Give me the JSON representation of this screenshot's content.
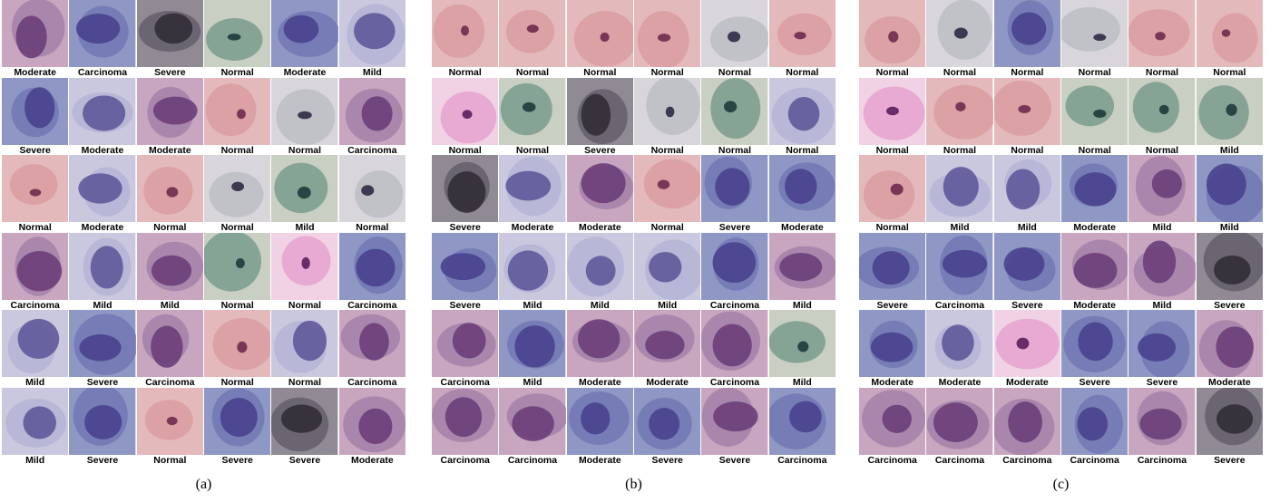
{
  "figure": {
    "panels": [
      {
        "caption": "(a)",
        "cells": [
          {
            "label": "Moderate",
            "stain": "violet"
          },
          {
            "label": "Carcinoma",
            "stain": "blue"
          },
          {
            "label": "Severe",
            "stain": "blur"
          },
          {
            "label": "Normal",
            "stain": "green"
          },
          {
            "label": "Moderate",
            "stain": "blue"
          },
          {
            "label": "Mild",
            "stain": "pale"
          },
          {
            "label": "Severe",
            "stain": "blue"
          },
          {
            "label": "Moderate",
            "stain": "pale"
          },
          {
            "label": "Moderate",
            "stain": "violet"
          },
          {
            "label": "Normal",
            "stain": "pink"
          },
          {
            "label": "Normal",
            "stain": "grey"
          },
          {
            "label": "Carcinoma",
            "stain": "violet"
          },
          {
            "label": "Normal",
            "stain": "pink"
          },
          {
            "label": "Moderate",
            "stain": "pale"
          },
          {
            "label": "Normal",
            "stain": "pink"
          },
          {
            "label": "Normal",
            "stain": "grey"
          },
          {
            "label": "Mild",
            "stain": "green"
          },
          {
            "label": "Normal",
            "stain": "grey"
          },
          {
            "label": "Carcinoma",
            "stain": "violet"
          },
          {
            "label": "Mild",
            "stain": "pale"
          },
          {
            "label": "Mild",
            "stain": "violet"
          },
          {
            "label": "Normal",
            "stain": "green"
          },
          {
            "label": "Normal",
            "stain": "magenta"
          },
          {
            "label": "Carcinoma",
            "stain": "blue"
          },
          {
            "label": "Mild",
            "stain": "pale"
          },
          {
            "label": "Severe",
            "stain": "blue"
          },
          {
            "label": "Carcinoma",
            "stain": "violet"
          },
          {
            "label": "Normal",
            "stain": "pink"
          },
          {
            "label": "Normal",
            "stain": "pale"
          },
          {
            "label": "Carcinoma",
            "stain": "violet"
          },
          {
            "label": "Mild",
            "stain": "pale"
          },
          {
            "label": "Severe",
            "stain": "blue"
          },
          {
            "label": "Normal",
            "stain": "pink"
          },
          {
            "label": "Severe",
            "stain": "blue"
          },
          {
            "label": "Severe",
            "stain": "blur"
          },
          {
            "label": "Moderate",
            "stain": "violet"
          }
        ]
      },
      {
        "caption": "(b)",
        "cells": [
          {
            "label": "Normal",
            "stain": "pink"
          },
          {
            "label": "Normal",
            "stain": "pink"
          },
          {
            "label": "Normal",
            "stain": "pink"
          },
          {
            "label": "Normal",
            "stain": "pink"
          },
          {
            "label": "Normal",
            "stain": "grey"
          },
          {
            "label": "Normal",
            "stain": "pink"
          },
          {
            "label": "Normal",
            "stain": "magenta"
          },
          {
            "label": "Normal",
            "stain": "green"
          },
          {
            "label": "Severe",
            "stain": "blur"
          },
          {
            "label": "Normal",
            "stain": "grey"
          },
          {
            "label": "Normal",
            "stain": "green"
          },
          {
            "label": "Normal",
            "stain": "pale"
          },
          {
            "label": "Severe",
            "stain": "blur"
          },
          {
            "label": "Moderate",
            "stain": "pale"
          },
          {
            "label": "Moderate",
            "stain": "violet"
          },
          {
            "label": "Normal",
            "stain": "pink"
          },
          {
            "label": "Severe",
            "stain": "blue"
          },
          {
            "label": "Moderate",
            "stain": "blue"
          },
          {
            "label": "Severe",
            "stain": "blue"
          },
          {
            "label": "Mild",
            "stain": "pale"
          },
          {
            "label": "Mild",
            "stain": "pale"
          },
          {
            "label": "Mild",
            "stain": "pale"
          },
          {
            "label": "Carcinoma",
            "stain": "blue"
          },
          {
            "label": "Mild",
            "stain": "violet"
          },
          {
            "label": "Carcinoma",
            "stain": "violet"
          },
          {
            "label": "Mild",
            "stain": "blue"
          },
          {
            "label": "Moderate",
            "stain": "violet"
          },
          {
            "label": "Moderate",
            "stain": "violet"
          },
          {
            "label": "Carcinoma",
            "stain": "violet"
          },
          {
            "label": "Mild",
            "stain": "green"
          },
          {
            "label": "Carcinoma",
            "stain": "violet"
          },
          {
            "label": "Carcinoma",
            "stain": "violet"
          },
          {
            "label": "Moderate",
            "stain": "blue"
          },
          {
            "label": "Severe",
            "stain": "blue"
          },
          {
            "label": "Severe",
            "stain": "violet"
          },
          {
            "label": "Carcinoma",
            "stain": "blue"
          }
        ]
      },
      {
        "caption": "(c)",
        "cells": [
          {
            "label": "Normal",
            "stain": "pink"
          },
          {
            "label": "Normal",
            "stain": "grey"
          },
          {
            "label": "Normal",
            "stain": "blue"
          },
          {
            "label": "Normal",
            "stain": "grey"
          },
          {
            "label": "Normal",
            "stain": "pink"
          },
          {
            "label": "Normal",
            "stain": "pink"
          },
          {
            "label": "Normal",
            "stain": "magenta"
          },
          {
            "label": "Normal",
            "stain": "pink"
          },
          {
            "label": "Normal",
            "stain": "pink"
          },
          {
            "label": "Normal",
            "stain": "green"
          },
          {
            "label": "Normal",
            "stain": "green"
          },
          {
            "label": "Mild",
            "stain": "green"
          },
          {
            "label": "Normal",
            "stain": "pink"
          },
          {
            "label": "Mild",
            "stain": "pale"
          },
          {
            "label": "Mild",
            "stain": "pale"
          },
          {
            "label": "Moderate",
            "stain": "blue"
          },
          {
            "label": "Mild",
            "stain": "violet"
          },
          {
            "label": "Mild",
            "stain": "blue"
          },
          {
            "label": "Severe",
            "stain": "blue"
          },
          {
            "label": "Carcinoma",
            "stain": "blue"
          },
          {
            "label": "Severe",
            "stain": "blue"
          },
          {
            "label": "Moderate",
            "stain": "violet"
          },
          {
            "label": "Mild",
            "stain": "violet"
          },
          {
            "label": "Severe",
            "stain": "blur"
          },
          {
            "label": "Moderate",
            "stain": "blue"
          },
          {
            "label": "Moderate",
            "stain": "pale"
          },
          {
            "label": "Moderate",
            "stain": "magenta"
          },
          {
            "label": "Severe",
            "stain": "blue"
          },
          {
            "label": "Severe",
            "stain": "blue"
          },
          {
            "label": "Moderate",
            "stain": "violet"
          },
          {
            "label": "Carcinoma",
            "stain": "violet"
          },
          {
            "label": "Carcinoma",
            "stain": "violet"
          },
          {
            "label": "Carcinoma",
            "stain": "violet"
          },
          {
            "label": "Carcinoma",
            "stain": "blue"
          },
          {
            "label": "Carcinoma",
            "stain": "violet"
          },
          {
            "label": "Severe",
            "stain": "blur"
          }
        ]
      }
    ]
  },
  "stain_colors": {
    "pink": {
      "bg": "#e3b9bb",
      "cell": "#d99a9e",
      "nuc": "#6e2a4e"
    },
    "grey": {
      "bg": "#d8d6da",
      "cell": "#b9bbc2",
      "nuc": "#2f2a45"
    },
    "green": {
      "bg": "#c9cfc2",
      "cell": "#6f9686",
      "nuc": "#1f3a3a"
    },
    "magenta": {
      "bg": "#f0d2e4",
      "cell": "#e59ccd",
      "nuc": "#5a1f5c"
    },
    "violet": {
      "bg": "#c8a6c0",
      "cell": "#a07ba6",
      "nuc": "#6a3f7a"
    },
    "blue": {
      "bg": "#8f97c4",
      "cell": "#6d74b2",
      "nuc": "#4a428f"
    },
    "pale": {
      "bg": "#c9c8de",
      "cell": "#b2b1d4",
      "nuc": "#5f5a9a"
    },
    "blur": {
      "bg": "#8f8a94",
      "cell": "#5d5866",
      "nuc": "#2e2a33"
    }
  }
}
